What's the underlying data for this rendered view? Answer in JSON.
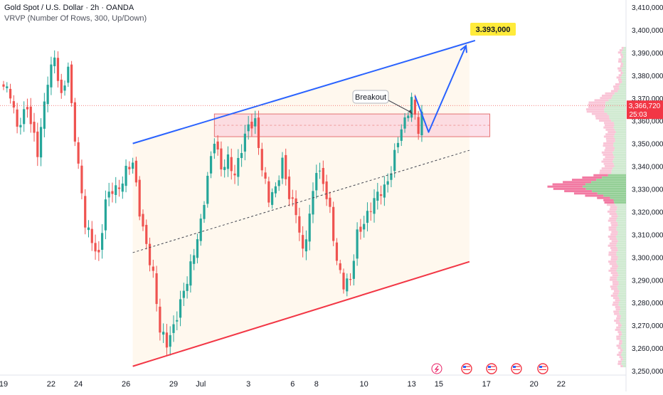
{
  "header": {
    "title": "Gold Spot / U.S. Dollar · 2h · OANDA",
    "indicator": "VRVP (Number Of Rows, 300, Up/Down)"
  },
  "chart_data": {
    "type": "candlestick",
    "symbol": "Gold Spot / U.S. Dollar",
    "timeframe": "2h",
    "ylim": [
      3248,
      3413
    ],
    "price_ticks": [
      3410,
      3400,
      3390,
      3380,
      3370,
      3360,
      3350,
      3340,
      3330,
      3320,
      3310,
      3300,
      3290,
      3280,
      3270,
      3260,
      3250
    ],
    "price_tick_labels": [
      "3,410,000",
      "3,400,000",
      "3,390,000",
      "3,380,000",
      "3,370,000",
      "3,360,000",
      "3,350,000",
      "3,340,000",
      "3,330,000",
      "3,320,000",
      "3,310,000",
      "3,300,000",
      "3,290,000",
      "3,280,000",
      "3,270,000",
      "3,260,000",
      "3,250,000"
    ],
    "date_labels": [
      {
        "label": "19",
        "idx": 0
      },
      {
        "label": "22",
        "idx": 14
      },
      {
        "label": "24",
        "idx": 22
      },
      {
        "label": "26",
        "idx": 36
      },
      {
        "label": "29",
        "idx": 50
      },
      {
        "label": "Jul",
        "idx": 58
      },
      {
        "label": "3",
        "idx": 72
      },
      {
        "label": "6",
        "idx": 85
      },
      {
        "label": "8",
        "idx": 92
      },
      {
        "label": "10",
        "idx": 106
      },
      {
        "label": "13",
        "idx": 120
      },
      {
        "label": "15",
        "idx": 128
      },
      {
        "label": "17",
        "idx": 142
      },
      {
        "label": "20",
        "idx": 156
      },
      {
        "label": "22",
        "idx": 164
      }
    ],
    "current_price": {
      "value": 3366.72,
      "label": "3,366,720",
      "countdown": "25:03"
    },
    "target": {
      "value": 3393.0,
      "label": "3.393,000"
    },
    "annotation": {
      "text": "Breakout"
    },
    "resistance_zone": {
      "start_idx": 62,
      "end_idx": 143,
      "low": 3353,
      "high": 3363
    },
    "channel": {
      "start_idx": 38,
      "end_idx": 137,
      "upper": [
        3350,
        3395
      ],
      "lower": [
        3252,
        3298
      ],
      "mid": [
        3302,
        3347
      ]
    },
    "projection": [
      {
        "idx": 121,
        "price": 3371
      },
      {
        "idx": 125,
        "price": 3355
      },
      {
        "idx": 136,
        "price": 3393
      }
    ],
    "anchors": [
      [
        0,
        3375
      ],
      [
        2,
        3372
      ],
      [
        4,
        3357
      ],
      [
        7,
        3366
      ],
      [
        10,
        3346
      ],
      [
        13,
        3378
      ],
      [
        15,
        3388
      ],
      [
        17,
        3370
      ],
      [
        19,
        3384
      ],
      [
        20,
        3366
      ],
      [
        22,
        3340
      ],
      [
        24,
        3315
      ],
      [
        26,
        3307
      ],
      [
        28,
        3300
      ],
      [
        30,
        3325
      ],
      [
        32,
        3330
      ],
      [
        34,
        3330
      ],
      [
        36,
        3338
      ],
      [
        38,
        3342
      ],
      [
        40,
        3320
      ],
      [
        42,
        3305
      ],
      [
        44,
        3292
      ],
      [
        46,
        3268
      ],
      [
        48,
        3262
      ],
      [
        50,
        3269
      ],
      [
        52,
        3280
      ],
      [
        54,
        3290
      ],
      [
        56,
        3302
      ],
      [
        58,
        3315
      ],
      [
        60,
        3335
      ],
      [
        62,
        3352
      ],
      [
        64,
        3339
      ],
      [
        66,
        3343
      ],
      [
        68,
        3336
      ],
      [
        70,
        3348
      ],
      [
        72,
        3358
      ],
      [
        74,
        3359
      ],
      [
        76,
        3339
      ],
      [
        78,
        3326
      ],
      [
        80,
        3330
      ],
      [
        82,
        3342
      ],
      [
        84,
        3327
      ],
      [
        86,
        3320
      ],
      [
        88,
        3302
      ],
      [
        90,
        3318
      ],
      [
        92,
        3339
      ],
      [
        94,
        3333
      ],
      [
        96,
        3320
      ],
      [
        98,
        3298
      ],
      [
        100,
        3288
      ],
      [
        102,
        3290
      ],
      [
        104,
        3310
      ],
      [
        106,
        3315
      ],
      [
        108,
        3322
      ],
      [
        110,
        3328
      ],
      [
        112,
        3330
      ],
      [
        114,
        3338
      ],
      [
        116,
        3352
      ],
      [
        118,
        3360
      ],
      [
        120,
        3369
      ],
      [
        122,
        3356
      ],
      [
        123,
        3364
      ]
    ]
  }
}
